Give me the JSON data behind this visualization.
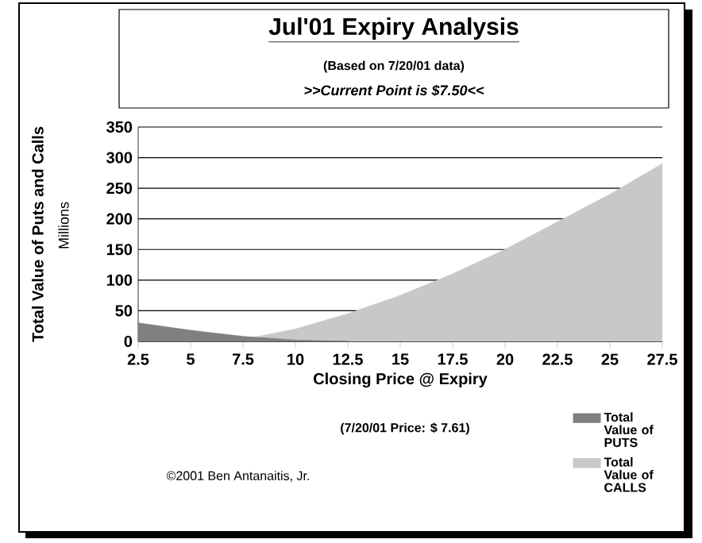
{
  "chart_data": {
    "type": "area",
    "title": "Jul'01 Expiry Analysis",
    "subtitle": "(Based on 7/20/01 data)",
    "xlabel": "Closing Price @ Expiry",
    "ylabel": "Total Value of Puts and Calls",
    "annotations": [
      ">>Current Point is $7.50<<",
      "(7/20/01 Price: $ 7.61)",
      "©2001 Ben Antanaitis, Jr.",
      "Millions"
    ],
    "categories": [
      "2.5",
      "5",
      "7.5",
      "10",
      "12.5",
      "15",
      "17.5",
      "20",
      "22.5",
      "25",
      "27.5"
    ],
    "series": [
      {
        "name": "Total Value of PUTS",
        "color": "#808080",
        "values": [
          30,
          18,
          8,
          2,
          0,
          null,
          null,
          null,
          null,
          null,
          null
        ]
      },
      {
        "name": "Total Value of CALLS",
        "color": "#c8c8c8",
        "values": [
          0,
          0,
          3,
          20,
          45,
          75,
          110,
          150,
          195,
          240,
          290
        ]
      }
    ],
    "ylim": [
      0,
      350
    ],
    "yticks": [
      0,
      50,
      100,
      150,
      200,
      250,
      300,
      350
    ],
    "grid": "y",
    "legend": "bottom right"
  }
}
